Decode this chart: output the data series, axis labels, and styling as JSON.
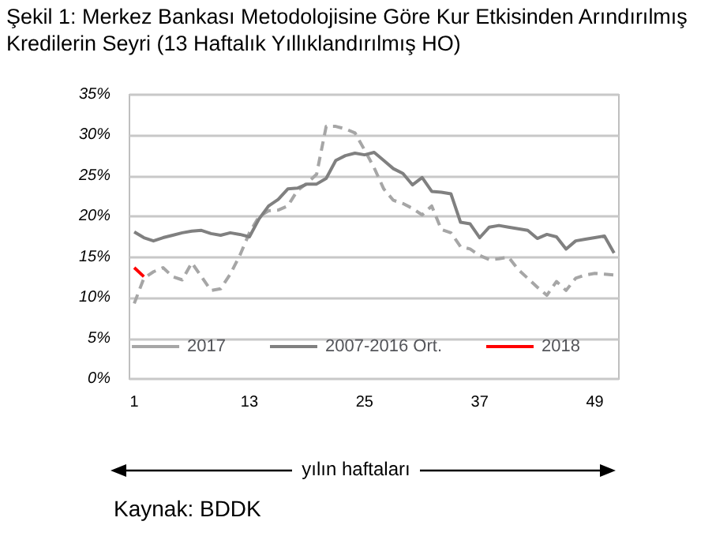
{
  "chart_data": {
    "type": "line",
    "title": "Şekil 1: Merkez Bankası Metodolojisine Göre Kur Etkisinden Arındırılmış Kredilerin Seyri (13 Haftalık Yıllıklandırılmış HO)",
    "xlabel": "yılın haftaları",
    "annotations": [
      "Kaynak: BDDK"
    ],
    "x": [
      1,
      2,
      3,
      4,
      5,
      6,
      7,
      8,
      9,
      10,
      11,
      12,
      13,
      14,
      15,
      16,
      17,
      18,
      19,
      20,
      21,
      22,
      23,
      24,
      25,
      26,
      27,
      28,
      29,
      30,
      31,
      32,
      33,
      34,
      35,
      36,
      37,
      38,
      39,
      40,
      41,
      42,
      43,
      44,
      45,
      46,
      47,
      48,
      49,
      50,
      51
    ],
    "series": [
      {
        "name": "2017",
        "color": "#a6a6a6",
        "line_style": "dashed",
        "values": [
          9.3,
          12.4,
          13.2,
          13.7,
          12.6,
          12.2,
          14.3,
          12.6,
          10.9,
          11.1,
          12.9,
          15.2,
          18.0,
          20.0,
          20.7,
          20.8,
          21.3,
          23.2,
          24.1,
          25.2,
          31.1,
          31.1,
          30.8,
          30.3,
          28.2,
          26.0,
          23.4,
          22.0,
          21.6,
          21.0,
          20.2,
          21.3,
          18.4,
          18.0,
          16.3,
          16.0,
          15.2,
          14.7,
          14.8,
          15.0,
          13.5,
          12.4,
          11.3,
          10.3,
          12.0,
          10.9,
          12.4,
          12.8,
          13.0,
          12.9,
          12.8
        ]
      },
      {
        "name": "2007-2016 Ort.",
        "color": "#808080",
        "line_style": "solid",
        "values": [
          18.1,
          17.4,
          17.0,
          17.4,
          17.7,
          18.0,
          18.2,
          18.3,
          17.9,
          17.7,
          18.0,
          17.8,
          17.5,
          19.7,
          21.3,
          22.1,
          23.4,
          23.5,
          24.0,
          24.0,
          24.7,
          26.9,
          27.5,
          27.8,
          27.6,
          27.9,
          26.9,
          25.9,
          25.3,
          23.9,
          24.8,
          23.1,
          23.0,
          22.8,
          19.3,
          19.1,
          17.4,
          18.7,
          18.9,
          18.7,
          18.5,
          18.3,
          17.3,
          17.8,
          17.5,
          16.0,
          17.0,
          17.2,
          17.4,
          17.6,
          15.5
        ]
      },
      {
        "name": "2018",
        "color": "#ff0000",
        "line_style": "solid",
        "x": [
          1,
          2
        ],
        "values": [
          13.7,
          12.6
        ]
      }
    ],
    "xlim": [
      0.5,
      51.5
    ],
    "xticks": [
      1,
      13,
      25,
      37,
      49
    ],
    "ylim": [
      0,
      35
    ],
    "yticks": [
      {
        "value": 0,
        "label": "0%"
      },
      {
        "value": 5,
        "label": "5%"
      },
      {
        "value": 10,
        "label": "10%"
      },
      {
        "value": 15,
        "label": "15%"
      },
      {
        "value": 20,
        "label": "20%"
      },
      {
        "value": 25,
        "label": "25%"
      },
      {
        "value": 30,
        "label": "30%"
      },
      {
        "value": 35,
        "label": "35%"
      }
    ],
    "grid": "y",
    "legend": "bottom",
    "marker": "none"
  }
}
